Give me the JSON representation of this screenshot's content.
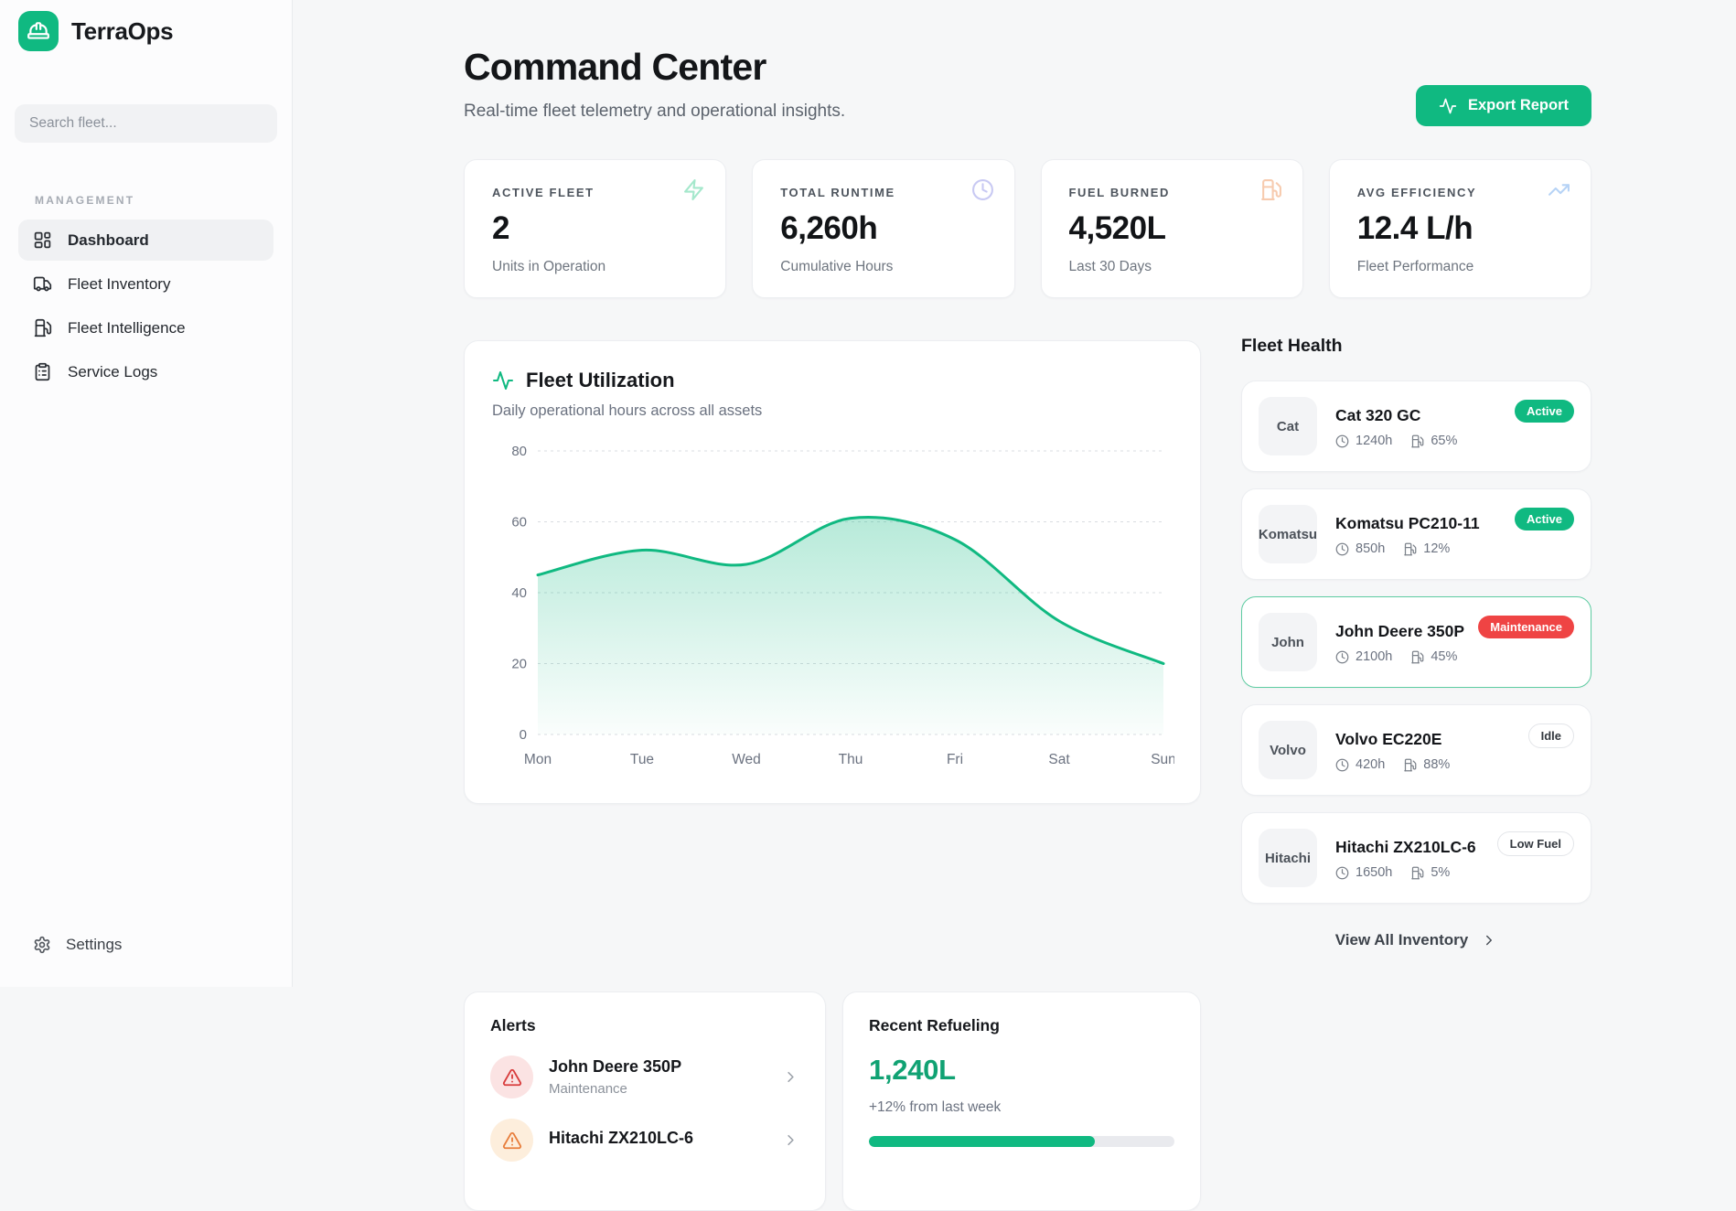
{
  "app": {
    "name": "TerraOps"
  },
  "sidebar": {
    "search_placeholder": "Search fleet...",
    "section_label": "MANAGEMENT",
    "items": [
      {
        "label": "Dashboard",
        "active": true
      },
      {
        "label": "Fleet Inventory",
        "active": false
      },
      {
        "label": "Fleet Intelligence",
        "active": false
      },
      {
        "label": "Service Logs",
        "active": false
      }
    ],
    "settings_label": "Settings"
  },
  "header": {
    "title": "Command Center",
    "subtitle": "Real-time fleet telemetry and operational insights.",
    "export_button": "Export Report"
  },
  "stats": [
    {
      "label": "ACTIVE FLEET",
      "value": "2",
      "sub": "Units in Operation",
      "icon": "zap-icon",
      "icon_color": "#a5e8cc"
    },
    {
      "label": "TOTAL RUNTIME",
      "value": "6,260h",
      "sub": "Cumulative Hours",
      "icon": "clock-icon",
      "icon_color": "#c8c9f3"
    },
    {
      "label": "FUEL BURNED",
      "value": "4,520L",
      "sub": "Last 30 Days",
      "icon": "fuel-pump-icon",
      "icon_color": "#f7cbaf"
    },
    {
      "label": "AVG EFFICIENCY",
      "value": "12.4 L/h",
      "sub": "Fleet Performance",
      "icon": "trending-up-icon",
      "icon_color": "#b6d3f6"
    }
  ],
  "chart_card": {
    "title": "Fleet Utilization",
    "subtitle": "Daily operational hours across all assets"
  },
  "chart_data": {
    "type": "area",
    "title": "Fleet Utilization",
    "categories": [
      "Mon",
      "Tue",
      "Wed",
      "Thu",
      "Fri",
      "Sat",
      "Sun"
    ],
    "values": [
      45,
      52,
      48,
      61,
      55,
      32,
      20
    ],
    "xlabel": "",
    "ylabel": "",
    "ylim": [
      0,
      80
    ],
    "yticks": [
      0,
      20,
      40,
      60,
      80
    ],
    "grid": "horizontal-dashed",
    "legend": "none",
    "line_color": "#10b981",
    "fill_color_top": "rgba(16,185,129,0.30)",
    "fill_color_bottom": "rgba(16,185,129,0.02)"
  },
  "fleet_health": {
    "title": "Fleet Health",
    "items": [
      {
        "avatar": "Cat",
        "name": "Cat 320 GC",
        "status": "Active",
        "status_style": "green",
        "hours": "1240h",
        "fuel": "65%",
        "selected": false
      },
      {
        "avatar": "Komatsu",
        "name": "Komatsu PC210-11",
        "status": "Active",
        "status_style": "green",
        "hours": "850h",
        "fuel": "12%",
        "selected": false
      },
      {
        "avatar": "John",
        "name": "John Deere 350P",
        "status": "Maintenance",
        "status_style": "red",
        "hours": "2100h",
        "fuel": "45%",
        "selected": true
      },
      {
        "avatar": "Volvo",
        "name": "Volvo EC220E",
        "status": "Idle",
        "status_style": "neutral",
        "hours": "420h",
        "fuel": "88%",
        "selected": false
      },
      {
        "avatar": "Hitachi",
        "name": "Hitachi ZX210LC-6",
        "status": "Low Fuel",
        "status_style": "neutral",
        "hours": "1650h",
        "fuel": "5%",
        "selected": false
      }
    ],
    "view_all": "View All Inventory"
  },
  "alerts": {
    "title": "Alerts",
    "items": [
      {
        "name": "John Deere 350P",
        "sub": "Maintenance",
        "severity": "red"
      },
      {
        "name": "Hitachi ZX210LC-6",
        "sub": "",
        "severity": "orange"
      }
    ]
  },
  "refueling": {
    "title": "Recent Refueling",
    "value": "1,240L",
    "delta": "+12% from last week",
    "progress_pct": 74
  },
  "colors": {
    "accent_green": "#10b981",
    "badge_red": "#ef4444"
  }
}
